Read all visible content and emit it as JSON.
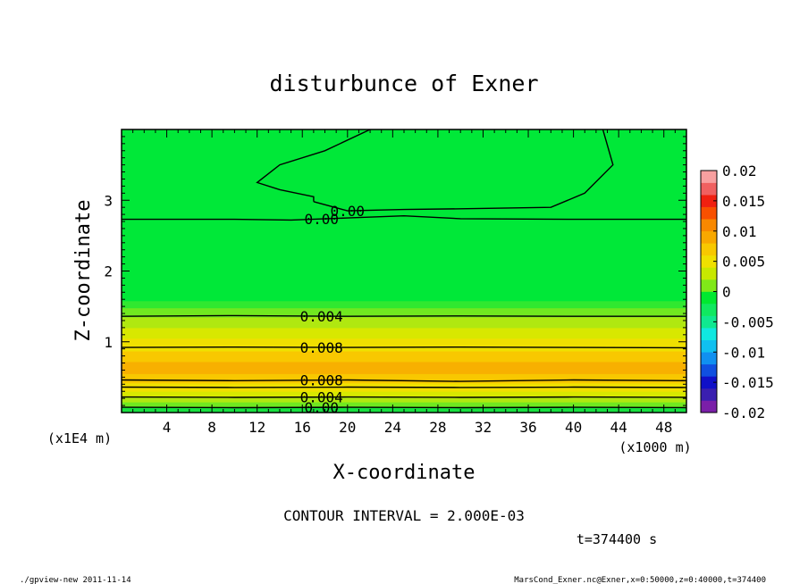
{
  "chart_data": {
    "type": "contour",
    "title": "disturbunce of Exner",
    "xlabel": "X-coordinate",
    "ylabel": "Z-coordinate",
    "x_units_label": "(x1000 m)",
    "y_units_label": "(x1E4 m)",
    "xlim": [
      0,
      50
    ],
    "ylim": [
      0,
      4
    ],
    "x_ticks": [
      4,
      8,
      12,
      16,
      20,
      24,
      28,
      32,
      36,
      40,
      44,
      48
    ],
    "y_ticks": [
      1,
      2,
      3
    ],
    "contour_interval_label": "CONTOUR INTERVAL = 2.000E-03",
    "time_label": "t=374400 s",
    "colorbar": {
      "ticks": [
        "0.02",
        "0.015",
        "0.01",
        "0.005",
        "0",
        "-0.005",
        "-0.01",
        "-0.015",
        "-0.02"
      ],
      "range": [
        -0.02,
        0.02
      ],
      "colors": [
        "#7a1fa8",
        "#3a1fb0",
        "#1010c8",
        "#1050e0",
        "#1090f0",
        "#10c0f0",
        "#10e8e0",
        "#10e890",
        "#10e860",
        "#00e830",
        "#80e818",
        "#c8e800",
        "#f0e000",
        "#f8c800",
        "#f8a800",
        "#f88800",
        "#f85000",
        "#f02010",
        "#f06060",
        "#f8a0a0"
      ]
    },
    "bands": [
      {
        "z0": 0.0,
        "z1": 0.08,
        "color": "#18e040"
      },
      {
        "z0": 0.08,
        "z1": 0.15,
        "color": "#70e820"
      },
      {
        "z0": 0.15,
        "z1": 0.22,
        "color": "#b0e810"
      },
      {
        "z0": 0.22,
        "z1": 0.3,
        "color": "#d8e800"
      },
      {
        "z0": 0.3,
        "z1": 0.42,
        "color": "#f0e000"
      },
      {
        "z0": 0.42,
        "z1": 0.55,
        "color": "#f8c800"
      },
      {
        "z0": 0.55,
        "z1": 0.72,
        "color": "#f8b000"
      },
      {
        "z0": 0.72,
        "z1": 0.87,
        "color": "#f8c800"
      },
      {
        "z0": 0.87,
        "z1": 1.05,
        "color": "#f0e000"
      },
      {
        "z0": 1.05,
        "z1": 1.2,
        "color": "#d8e800"
      },
      {
        "z0": 1.2,
        "z1": 1.35,
        "color": "#b0e810"
      },
      {
        "z0": 1.35,
        "z1": 1.48,
        "color": "#70e820"
      },
      {
        "z0": 1.48,
        "z1": 1.58,
        "color": "#30e830"
      },
      {
        "z0": 1.58,
        "z1": 4.0,
        "color": "#00e838"
      }
    ],
    "contours": [
      {
        "label": "0.00",
        "label_x": 17.7,
        "points": [
          [
            0,
            0.075
          ],
          [
            10,
            0.07
          ],
          [
            20,
            0.075
          ],
          [
            30,
            0.07
          ],
          [
            40,
            0.075
          ],
          [
            50,
            0.07
          ]
        ]
      },
      {
        "label": "0.004",
        "label_x": 17.7,
        "points": [
          [
            0,
            0.22
          ],
          [
            10,
            0.215
          ],
          [
            20,
            0.22
          ],
          [
            30,
            0.215
          ],
          [
            40,
            0.22
          ],
          [
            50,
            0.215
          ]
        ]
      },
      {
        "label": "",
        "label_x": null,
        "points": [
          [
            0,
            0.36
          ],
          [
            10,
            0.355
          ],
          [
            20,
            0.36
          ],
          [
            30,
            0.355
          ],
          [
            40,
            0.36
          ],
          [
            50,
            0.355
          ]
        ]
      },
      {
        "label": "0.008",
        "label_x": 17.7,
        "points": [
          [
            0,
            0.46
          ],
          [
            10,
            0.45
          ],
          [
            20,
            0.46
          ],
          [
            30,
            0.44
          ],
          [
            40,
            0.46
          ],
          [
            50,
            0.45
          ]
        ]
      },
      {
        "label": "0.008",
        "label_x": 17.7,
        "points": [
          [
            0,
            0.92
          ],
          [
            10,
            0.925
          ],
          [
            20,
            0.92
          ],
          [
            30,
            0.925
          ],
          [
            40,
            0.92
          ],
          [
            50,
            0.915
          ]
        ]
      },
      {
        "label": "0.004",
        "label_x": 17.7,
        "points": [
          [
            0,
            1.36
          ],
          [
            10,
            1.37
          ],
          [
            20,
            1.36
          ],
          [
            30,
            1.365
          ],
          [
            40,
            1.36
          ],
          [
            50,
            1.36
          ]
        ]
      },
      {
        "label": "0.00",
        "label_x": 17.7,
        "points": [
          [
            0,
            2.73
          ],
          [
            10,
            2.73
          ],
          [
            15,
            2.72
          ],
          [
            20,
            2.75
          ],
          [
            25,
            2.78
          ],
          [
            30,
            2.74
          ],
          [
            40,
            2.73
          ],
          [
            50,
            2.73
          ]
        ]
      },
      {
        "label": "0.00",
        "label_x": 20.0,
        "points": [
          [
            17,
            2.98
          ],
          [
            20,
            2.85
          ],
          [
            25,
            2.87
          ],
          [
            30,
            2.88
          ],
          [
            38,
            2.9
          ],
          [
            41,
            3.1
          ],
          [
            43.5,
            3.5
          ],
          [
            42.6,
            4.0
          ]
        ]
      },
      {
        "label": "",
        "label_x": null,
        "points": [
          [
            22,
            4.0
          ],
          [
            18,
            3.7
          ],
          [
            14,
            3.5
          ],
          [
            12,
            3.25
          ],
          [
            14,
            3.15
          ],
          [
            17,
            3.05
          ],
          [
            17,
            2.98
          ]
        ]
      }
    ]
  },
  "footer": {
    "left": "./gpview-new   2011-11-14",
    "right": "MarsCond_Exner.nc@Exner,x=0:50000,z=0:40000,t=374400"
  }
}
